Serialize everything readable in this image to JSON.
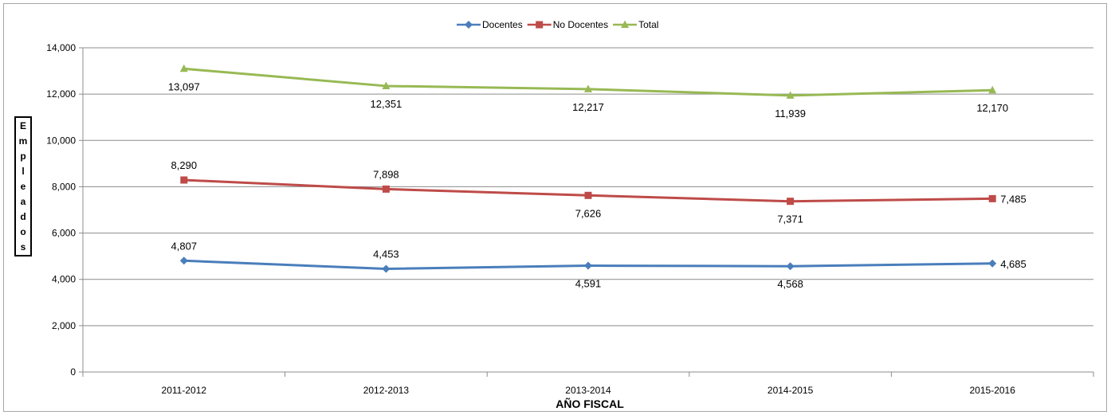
{
  "chart_data": {
    "type": "line",
    "title": "",
    "xlabel": "AÑO FISCAL",
    "ylabel": "Empleados",
    "categories": [
      "2011-2012",
      "2012-2013",
      "2013-2014",
      "2014-2015",
      "2015-2016"
    ],
    "ylim": [
      0,
      14000
    ],
    "yticks": [
      0,
      2000,
      4000,
      6000,
      8000,
      10000,
      12000,
      14000
    ],
    "ytick_labels": [
      "0",
      "2,000",
      "4,000",
      "6,000",
      "8,000",
      "10,000",
      "12,000",
      "14,000"
    ],
    "grid": true,
    "legend_position": "top-center",
    "series": [
      {
        "name": "Docentes",
        "color": "#4a7ebb",
        "marker": "diamond",
        "values": [
          4807,
          4453,
          4591,
          4568,
          4685
        ],
        "labels": [
          "4,807",
          "4,453",
          "4,591",
          "4,568",
          "4,685"
        ]
      },
      {
        "name": "No Docentes",
        "color": "#be4b48",
        "marker": "square",
        "values": [
          8290,
          7898,
          7626,
          7371,
          7485
        ],
        "labels": [
          "8,290",
          "7,898",
          "7,626",
          "7,371",
          "7,485"
        ]
      },
      {
        "name": "Total",
        "color": "#98b954",
        "marker": "triangle",
        "values": [
          13097,
          12351,
          12217,
          11939,
          12170
        ],
        "labels": [
          "13,097",
          "12,351",
          "12,217",
          "11,939",
          "12,170"
        ]
      }
    ]
  }
}
